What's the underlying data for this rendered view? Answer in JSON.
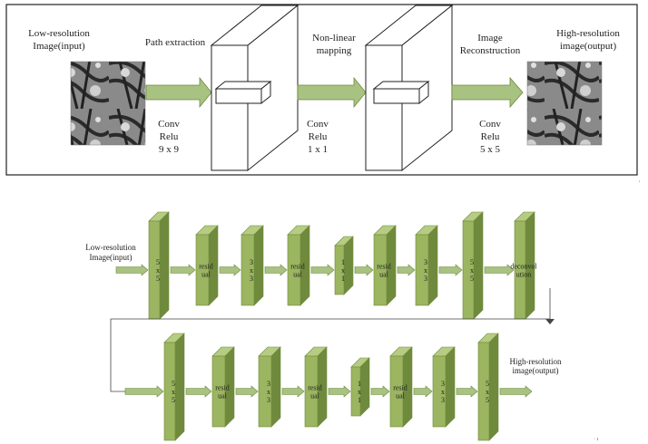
{
  "figure_top": {
    "input_label": [
      "Low-resolution",
      "Image(input)"
    ],
    "output_label": [
      "High-resolution",
      "image(output)"
    ],
    "stages": [
      {
        "title": [
          "Path extraction"
        ],
        "params": [
          "Conv",
          "Relu",
          "9 x 9"
        ]
      },
      {
        "title": [
          "Non-linear",
          "mapping"
        ],
        "params": [
          "Conv",
          "Relu",
          "1 x 1"
        ]
      },
      {
        "title": [
          "Image",
          "Reconstruction"
        ],
        "params": [
          "Conv",
          "Relu",
          "5 x 5"
        ]
      }
    ]
  },
  "figure_bottom": {
    "row1": {
      "input_label": [
        "Low-resolution",
        "Image(input)"
      ],
      "blocks": [
        {
          "label": [
            "5",
            "x",
            "5"
          ],
          "size": "large"
        },
        {
          "label": [
            "resid",
            "ual"
          ],
          "size": "medium"
        },
        {
          "label": [
            "3",
            "x",
            "3"
          ],
          "size": "medium"
        },
        {
          "label": [
            "resid",
            "ual"
          ],
          "size": "medium"
        },
        {
          "label": [
            "1",
            "x",
            "1"
          ],
          "size": "small"
        },
        {
          "label": [
            "resid",
            "ual"
          ],
          "size": "medium"
        },
        {
          "label": [
            "3",
            "x",
            "3"
          ],
          "size": "medium"
        },
        {
          "label": [
            "5",
            "x",
            "5"
          ],
          "size": "large"
        },
        {
          "label": [
            "deconvol",
            "ution"
          ],
          "size": "large"
        }
      ]
    },
    "row2": {
      "output_label": [
        "High-resolution",
        "image(output)"
      ],
      "blocks": [
        {
          "label": [
            "5",
            "x",
            "5"
          ],
          "size": "large"
        },
        {
          "label": [
            "resid",
            "ual"
          ],
          "size": "medium"
        },
        {
          "label": [
            "3",
            "x",
            "3"
          ],
          "size": "medium"
        },
        {
          "label": [
            "resid",
            "ual"
          ],
          "size": "medium"
        },
        {
          "label": [
            "1",
            "x",
            "1"
          ],
          "size": "small"
        },
        {
          "label": [
            "resid",
            "ual"
          ],
          "size": "medium"
        },
        {
          "label": [
            "3",
            "x",
            "3"
          ],
          "size": "medium"
        },
        {
          "label": [
            "5",
            "x",
            "5"
          ],
          "size": "large"
        }
      ]
    }
  },
  "colors": {
    "block_front": "#9bb560",
    "block_top": "#b6cc82",
    "block_side": "#6f8a3c",
    "arrow_fill": "#a8c282",
    "arrow_stroke": "#6f8a3c",
    "line": "#444444"
  },
  "icons": [
    "butterfly-wing-image-input",
    "butterfly-wing-image-output"
  ]
}
